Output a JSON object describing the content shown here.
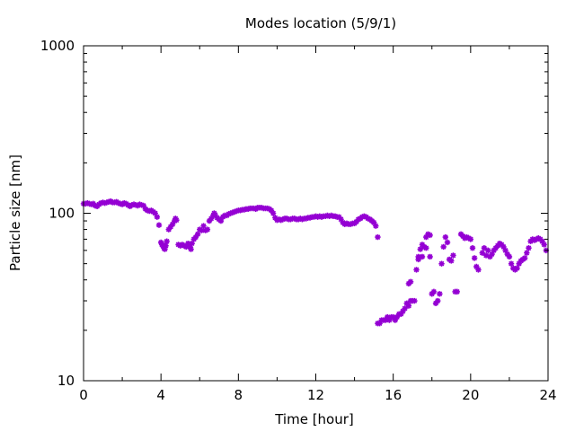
{
  "chart_data": {
    "type": "scatter",
    "title": "Modes location (5/9/1)",
    "xlabel": "Time [hour]",
    "ylabel": "Particle size [nm]",
    "xlim": [
      0,
      24
    ],
    "ylim": [
      10,
      1000
    ],
    "yscale": "log",
    "xticks": [
      0,
      4,
      8,
      12,
      16,
      20,
      24
    ],
    "yticks": [
      10,
      100,
      1000
    ],
    "grid": false,
    "legend": "none",
    "marker_color": "#9400d3",
    "points": [
      [
        0.0,
        114
      ],
      [
        0.1,
        114
      ],
      [
        0.2,
        115
      ],
      [
        0.3,
        114
      ],
      [
        0.4,
        113
      ],
      [
        0.5,
        114
      ],
      [
        0.6,
        111
      ],
      [
        0.7,
        110
      ],
      [
        0.8,
        113
      ],
      [
        0.9,
        115
      ],
      [
        1.0,
        116
      ],
      [
        1.1,
        115
      ],
      [
        1.2,
        116
      ],
      [
        1.3,
        117
      ],
      [
        1.4,
        118
      ],
      [
        1.5,
        116
      ],
      [
        1.6,
        116
      ],
      [
        1.7,
        117
      ],
      [
        1.8,
        115
      ],
      [
        1.9,
        114
      ],
      [
        2.0,
        113
      ],
      [
        2.1,
        115
      ],
      [
        2.2,
        114
      ],
      [
        2.3,
        112
      ],
      [
        2.4,
        110
      ],
      [
        2.5,
        112
      ],
      [
        2.6,
        113
      ],
      [
        2.7,
        112
      ],
      [
        2.8,
        111
      ],
      [
        2.9,
        113
      ],
      [
        3.0,
        112
      ],
      [
        3.1,
        111
      ],
      [
        3.2,
        106
      ],
      [
        3.3,
        104
      ],
      [
        3.4,
        103
      ],
      [
        3.5,
        104
      ],
      [
        3.6,
        102
      ],
      [
        3.7,
        100
      ],
      [
        3.8,
        95
      ],
      [
        3.9,
        85
      ],
      [
        4.0,
        67
      ],
      [
        4.05,
        65
      ],
      [
        4.1,
        64
      ],
      [
        4.15,
        62
      ],
      [
        4.2,
        61
      ],
      [
        4.25,
        64
      ],
      [
        4.3,
        68
      ],
      [
        4.4,
        80
      ],
      [
        4.5,
        83
      ],
      [
        4.6,
        86
      ],
      [
        4.7,
        90
      ],
      [
        4.75,
        93
      ],
      [
        4.8,
        91
      ],
      [
        4.9,
        65
      ],
      [
        5.0,
        64
      ],
      [
        5.1,
        65
      ],
      [
        5.2,
        64
      ],
      [
        5.3,
        63
      ],
      [
        5.4,
        66
      ],
      [
        5.5,
        63
      ],
      [
        5.55,
        61
      ],
      [
        5.6,
        66
      ],
      [
        5.7,
        70
      ],
      [
        5.8,
        72
      ],
      [
        5.9,
        75
      ],
      [
        6.0,
        80
      ],
      [
        6.1,
        79
      ],
      [
        6.2,
        84
      ],
      [
        6.3,
        79
      ],
      [
        6.4,
        80
      ],
      [
        6.5,
        90
      ],
      [
        6.6,
        93
      ],
      [
        6.7,
        97
      ],
      [
        6.75,
        100
      ],
      [
        6.8,
        98
      ],
      [
        6.9,
        94
      ],
      [
        7.0,
        92
      ],
      [
        7.1,
        90
      ],
      [
        7.2,
        95
      ],
      [
        7.3,
        97
      ],
      [
        7.4,
        97
      ],
      [
        7.5,
        99
      ],
      [
        7.6,
        100
      ],
      [
        7.7,
        101
      ],
      [
        7.8,
        102
      ],
      [
        7.9,
        103
      ],
      [
        8.0,
        104
      ],
      [
        8.1,
        104
      ],
      [
        8.2,
        105
      ],
      [
        8.3,
        105
      ],
      [
        8.4,
        106
      ],
      [
        8.5,
        106
      ],
      [
        8.6,
        107
      ],
      [
        8.7,
        107
      ],
      [
        8.8,
        107
      ],
      [
        8.9,
        106
      ],
      [
        9.0,
        108
      ],
      [
        9.1,
        108
      ],
      [
        9.2,
        108
      ],
      [
        9.3,
        107
      ],
      [
        9.4,
        107
      ],
      [
        9.5,
        107
      ],
      [
        9.6,
        106
      ],
      [
        9.7,
        104
      ],
      [
        9.8,
        100
      ],
      [
        9.9,
        94
      ],
      [
        10.0,
        91
      ],
      [
        10.1,
        92
      ],
      [
        10.2,
        91
      ],
      [
        10.3,
        92
      ],
      [
        10.4,
        93
      ],
      [
        10.5,
        93
      ],
      [
        10.6,
        92
      ],
      [
        10.7,
        92
      ],
      [
        10.8,
        93
      ],
      [
        10.9,
        93
      ],
      [
        11.0,
        92
      ],
      [
        11.1,
        92
      ],
      [
        11.2,
        93
      ],
      [
        11.3,
        92
      ],
      [
        11.4,
        93
      ],
      [
        11.5,
        93
      ],
      [
        11.6,
        94
      ],
      [
        11.7,
        94
      ],
      [
        11.8,
        95
      ],
      [
        11.9,
        95
      ],
      [
        12.0,
        96
      ],
      [
        12.1,
        95
      ],
      [
        12.2,
        96
      ],
      [
        12.3,
        95
      ],
      [
        12.4,
        96
      ],
      [
        12.5,
        96
      ],
      [
        12.6,
        97
      ],
      [
        12.7,
        96
      ],
      [
        12.8,
        97
      ],
      [
        12.9,
        96
      ],
      [
        13.0,
        96
      ],
      [
        13.1,
        95
      ],
      [
        13.2,
        95
      ],
      [
        13.3,
        92
      ],
      [
        13.4,
        88
      ],
      [
        13.5,
        86
      ],
      [
        13.6,
        87
      ],
      [
        13.7,
        86
      ],
      [
        13.8,
        86
      ],
      [
        13.9,
        87
      ],
      [
        14.0,
        87
      ],
      [
        14.1,
        89
      ],
      [
        14.2,
        92
      ],
      [
        14.3,
        93
      ],
      [
        14.4,
        95
      ],
      [
        14.5,
        96
      ],
      [
        14.6,
        95
      ],
      [
        14.7,
        93
      ],
      [
        14.8,
        92
      ],
      [
        14.9,
        90
      ],
      [
        15.0,
        88
      ],
      [
        15.1,
        84
      ],
      [
        15.2,
        72
      ],
      [
        15.2,
        22
      ],
      [
        15.3,
        22
      ],
      [
        15.4,
        23
      ],
      [
        15.5,
        23
      ],
      [
        15.6,
        23
      ],
      [
        15.7,
        24
      ],
      [
        15.8,
        23
      ],
      [
        15.9,
        24
      ],
      [
        16.0,
        24
      ],
      [
        16.1,
        23
      ],
      [
        16.2,
        24
      ],
      [
        16.3,
        25
      ],
      [
        16.4,
        25
      ],
      [
        16.5,
        26
      ],
      [
        16.6,
        27
      ],
      [
        16.7,
        29
      ],
      [
        16.8,
        28
      ],
      [
        16.9,
        30
      ],
      [
        17.0,
        30
      ],
      [
        17.1,
        30
      ],
      [
        16.8,
        38
      ],
      [
        16.9,
        39
      ],
      [
        17.2,
        46
      ],
      [
        17.3,
        55
      ],
      [
        17.4,
        61
      ],
      [
        17.5,
        65
      ],
      [
        17.6,
        63
      ],
      [
        17.7,
        72
      ],
      [
        17.8,
        75
      ],
      [
        17.9,
        74
      ],
      [
        17.3,
        53
      ],
      [
        17.5,
        55
      ],
      [
        17.7,
        62
      ],
      [
        17.9,
        55
      ],
      [
        18.0,
        33
      ],
      [
        18.1,
        34
      ],
      [
        18.2,
        29
      ],
      [
        18.3,
        30
      ],
      [
        18.4,
        33
      ],
      [
        18.5,
        50
      ],
      [
        18.6,
        63
      ],
      [
        18.7,
        72
      ],
      [
        18.8,
        67
      ],
      [
        18.9,
        53
      ],
      [
        19.0,
        52
      ],
      [
        19.1,
        56
      ],
      [
        19.2,
        34
      ],
      [
        19.3,
        34
      ],
      [
        19.5,
        75
      ],
      [
        19.6,
        73
      ],
      [
        19.7,
        71
      ],
      [
        19.8,
        72
      ],
      [
        19.9,
        71
      ],
      [
        20.0,
        70
      ],
      [
        20.1,
        62
      ],
      [
        20.2,
        54
      ],
      [
        20.3,
        48
      ],
      [
        20.4,
        46
      ],
      [
        20.6,
        58
      ],
      [
        20.7,
        62
      ],
      [
        20.8,
        56
      ],
      [
        20.9,
        60
      ],
      [
        21.0,
        55
      ],
      [
        21.1,
        57
      ],
      [
        21.2,
        60
      ],
      [
        21.3,
        62
      ],
      [
        21.4,
        64
      ],
      [
        21.5,
        66
      ],
      [
        21.6,
        65
      ],
      [
        21.7,
        63
      ],
      [
        21.8,
        60
      ],
      [
        21.9,
        57
      ],
      [
        22.0,
        55
      ],
      [
        22.1,
        50
      ],
      [
        22.2,
        47
      ],
      [
        22.3,
        46
      ],
      [
        22.4,
        47
      ],
      [
        22.5,
        50
      ],
      [
        22.6,
        52
      ],
      [
        22.7,
        53
      ],
      [
        22.8,
        54
      ],
      [
        22.9,
        58
      ],
      [
        23.0,
        62
      ],
      [
        23.1,
        68
      ],
      [
        23.2,
        70
      ],
      [
        23.3,
        69
      ],
      [
        23.4,
        70
      ],
      [
        23.5,
        71
      ],
      [
        23.6,
        70
      ],
      [
        23.7,
        68
      ],
      [
        23.8,
        65
      ],
      [
        23.9,
        60
      ]
    ]
  }
}
